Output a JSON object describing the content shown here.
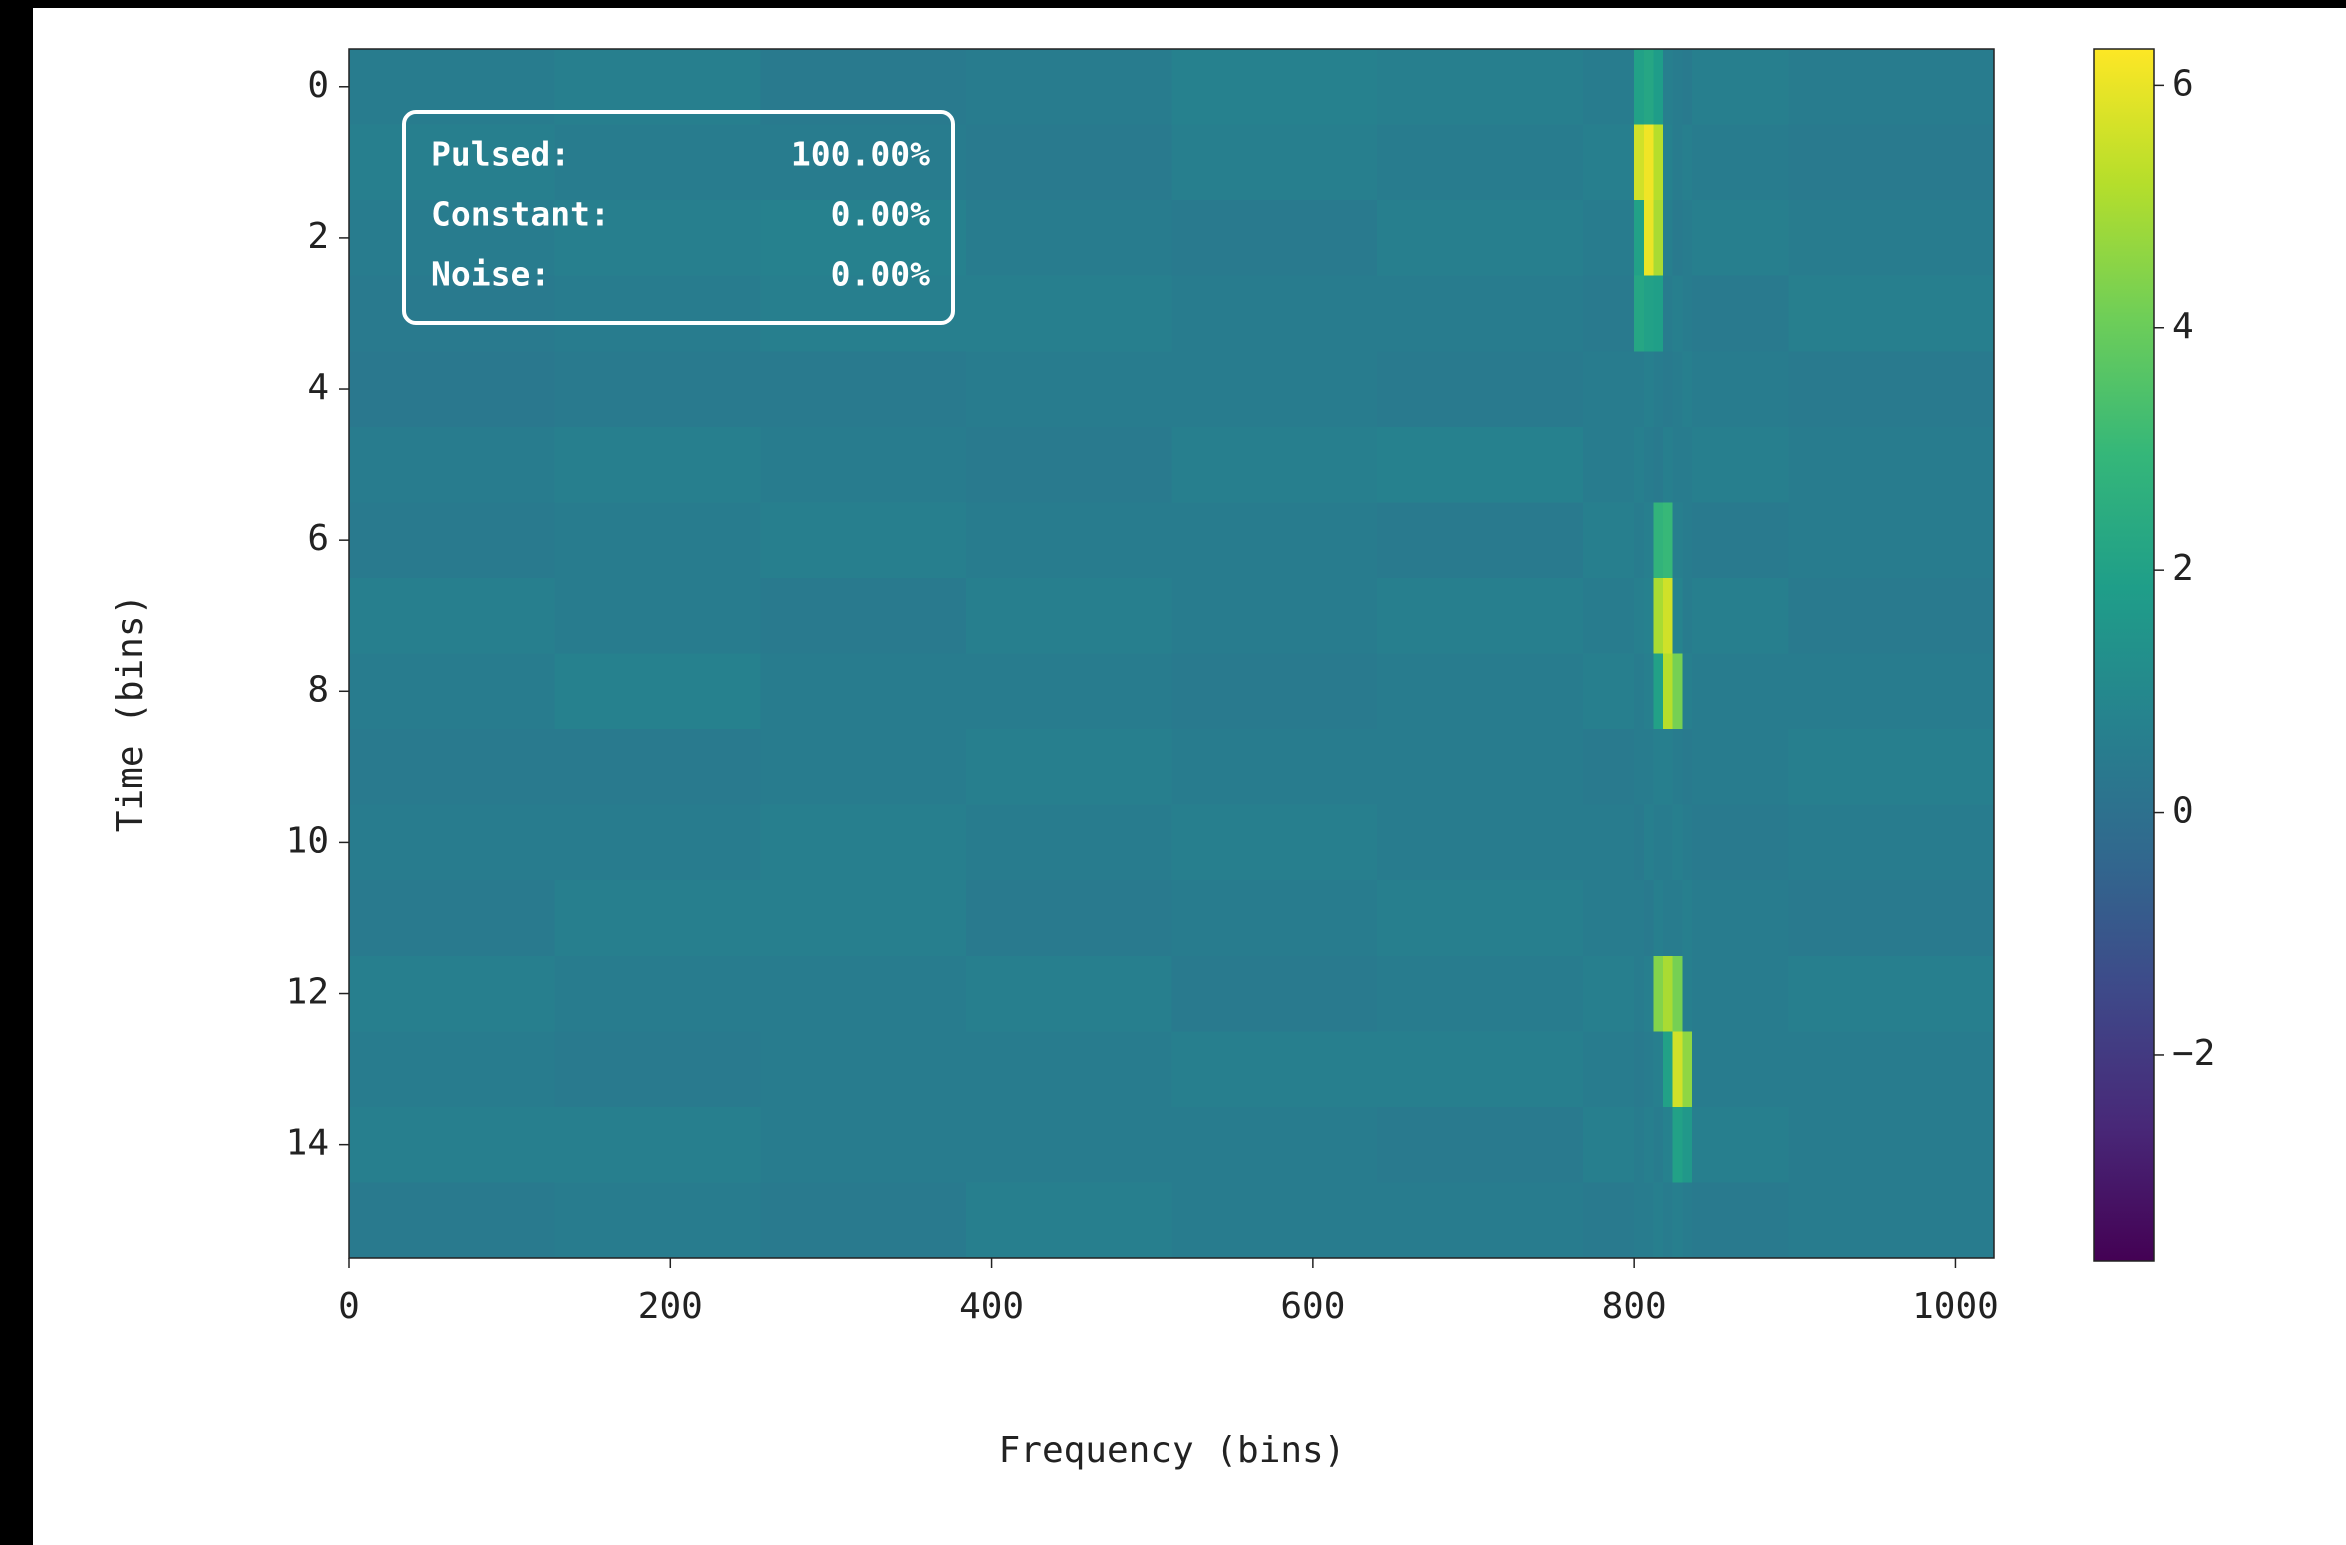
{
  "chart_data": {
    "type": "heatmap",
    "xlabel": "Frequency (bins)",
    "ylabel": "Time (bins)",
    "xlim": [
      0,
      1024
    ],
    "ylim": [
      15.5,
      -0.5
    ],
    "xticks": [
      0,
      200,
      400,
      600,
      800,
      1000
    ],
    "yticks": [
      0,
      2,
      4,
      6,
      8,
      10,
      12,
      14
    ],
    "xbins": [
      0,
      128,
      256,
      384,
      512,
      640,
      768,
      800,
      806,
      812,
      818,
      824,
      830,
      836,
      896,
      1024
    ],
    "y": [
      0,
      1,
      2,
      3,
      4,
      5,
      6,
      7,
      8,
      9,
      10,
      11,
      12,
      13,
      14,
      15
    ],
    "values": [
      [
        0.5,
        0.6,
        0.4,
        0.5,
        0.7,
        0.6,
        0.5,
        2.0,
        2.2,
        1.8,
        0.6,
        0.5,
        0.4,
        0.6,
        0.5
      ],
      [
        0.6,
        0.5,
        0.5,
        0.4,
        0.6,
        0.5,
        0.6,
        5.6,
        6.1,
        5.2,
        0.7,
        0.5,
        0.6,
        0.5,
        0.4
      ],
      [
        0.5,
        0.6,
        0.7,
        0.5,
        0.4,
        0.6,
        0.5,
        2.0,
        6.0,
        5.0,
        0.6,
        0.4,
        0.5,
        0.6,
        0.5
      ],
      [
        0.4,
        0.5,
        0.6,
        0.6,
        0.5,
        0.5,
        0.4,
        2.2,
        2.0,
        1.9,
        0.5,
        0.6,
        0.5,
        0.4,
        0.6
      ],
      [
        0.3,
        0.4,
        0.4,
        0.5,
        0.5,
        0.4,
        0.5,
        0.5,
        0.6,
        0.5,
        0.4,
        0.5,
        0.6,
        0.5,
        0.4
      ],
      [
        0.5,
        0.6,
        0.5,
        0.4,
        0.6,
        0.7,
        0.5,
        0.6,
        0.5,
        0.4,
        0.6,
        0.5,
        0.5,
        0.6,
        0.5
      ],
      [
        0.4,
        0.5,
        0.6,
        0.5,
        0.5,
        0.4,
        0.6,
        0.5,
        0.6,
        2.8,
        3.0,
        0.6,
        0.5,
        0.4,
        0.5
      ],
      [
        0.6,
        0.5,
        0.4,
        0.6,
        0.5,
        0.6,
        0.5,
        0.6,
        0.7,
        5.0,
        5.6,
        0.8,
        0.5,
        0.6,
        0.4
      ],
      [
        0.5,
        0.7,
        0.5,
        0.5,
        0.4,
        0.5,
        0.6,
        0.5,
        0.6,
        2.0,
        5.2,
        4.2,
        0.6,
        0.5,
        0.5
      ],
      [
        0.4,
        0.4,
        0.5,
        0.6,
        0.5,
        0.5,
        0.4,
        0.5,
        0.5,
        0.6,
        0.6,
        0.5,
        0.4,
        0.5,
        0.6
      ],
      [
        0.5,
        0.5,
        0.6,
        0.5,
        0.6,
        0.5,
        0.5,
        0.4,
        0.6,
        0.5,
        0.5,
        0.6,
        0.5,
        0.4,
        0.5
      ],
      [
        0.4,
        0.6,
        0.6,
        0.4,
        0.5,
        0.6,
        0.5,
        0.5,
        0.4,
        0.6,
        0.5,
        0.5,
        0.6,
        0.5,
        0.4
      ],
      [
        0.6,
        0.5,
        0.5,
        0.6,
        0.4,
        0.5,
        0.6,
        0.5,
        0.6,
        4.4,
        5.0,
        4.2,
        0.6,
        0.5,
        0.6
      ],
      [
        0.5,
        0.4,
        0.5,
        0.5,
        0.6,
        0.6,
        0.5,
        0.4,
        0.5,
        0.6,
        2.0,
        5.6,
        4.6,
        0.5,
        0.5
      ],
      [
        0.6,
        0.6,
        0.5,
        0.5,
        0.5,
        0.4,
        0.6,
        0.5,
        0.6,
        0.5,
        0.7,
        2.0,
        1.6,
        0.6,
        0.5
      ],
      [
        0.4,
        0.5,
        0.4,
        0.6,
        0.5,
        0.5,
        0.4,
        0.5,
        0.5,
        0.6,
        0.5,
        0.6,
        0.5,
        0.4,
        0.5
      ]
    ],
    "colormap": [
      "#440154",
      "#482878",
      "#3e4989",
      "#31688e",
      "#26828e",
      "#1f9e89",
      "#35b779",
      "#6ece58",
      "#b5de2b",
      "#fde725"
    ],
    "zlim": [
      -3.7,
      6.3
    ],
    "zticks": [
      {
        "value": -2,
        "label": "−2"
      },
      0,
      2,
      4,
      6
    ],
    "annotation": [
      [
        "Pulsed:",
        "100.00%"
      ],
      [
        "Constant:",
        "0.00%"
      ],
      [
        "Noise:",
        "0.00%"
      ]
    ]
  }
}
